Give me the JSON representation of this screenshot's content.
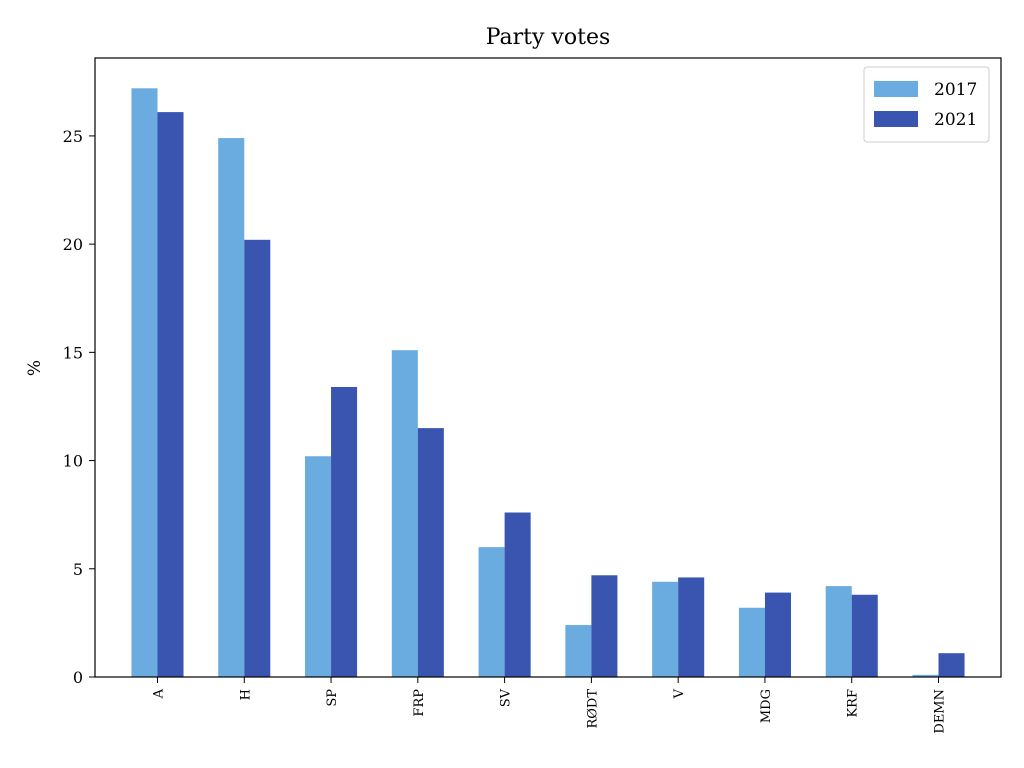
{
  "chart_data": {
    "type": "bar",
    "title": "Party votes",
    "xlabel": "",
    "ylabel": "%",
    "ylim": [
      0,
      28.6
    ],
    "yticks": [
      0,
      5,
      10,
      15,
      20,
      25
    ],
    "categories": [
      "A",
      "H",
      "SP",
      "FRP",
      "SV",
      "RØDT",
      "V",
      "MDG",
      "KRF",
      "DEMN"
    ],
    "series": [
      {
        "name": "2017",
        "color": "#6aabe0",
        "values": [
          27.2,
          24.9,
          10.2,
          15.1,
          6.0,
          2.4,
          4.4,
          3.2,
          4.2,
          0.1
        ]
      },
      {
        "name": "2021",
        "color": "#3a55b0",
        "values": [
          26.1,
          20.2,
          13.4,
          11.5,
          7.6,
          4.7,
          4.6,
          3.9,
          3.8,
          1.1
        ]
      }
    ],
    "legend_position": "top-right",
    "grid": false
  }
}
